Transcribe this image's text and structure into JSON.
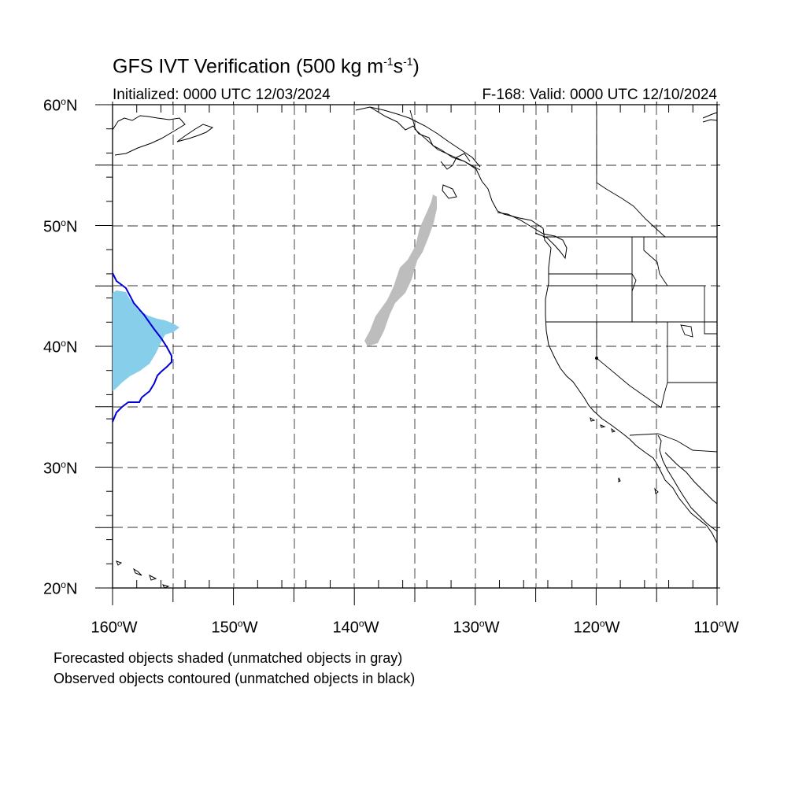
{
  "title": {
    "main": "GFS IVT Verification (500 kg m",
    "sup1": "-1",
    "mid": "s",
    "sup2": "-1",
    "end": ")"
  },
  "initialized": "Initialized: 0000 UTC 12/03/2024",
  "valid": "F-168: Valid: 0000 UTC 12/10/2024",
  "lat_ticks": [
    {
      "value": "60",
      "suffix": "N"
    },
    {
      "value": "50",
      "suffix": "N"
    },
    {
      "value": "40",
      "suffix": "N"
    },
    {
      "value": "30",
      "suffix": "N"
    },
    {
      "value": "20",
      "suffix": "N"
    }
  ],
  "lon_ticks": [
    {
      "value": "160",
      "suffix": "W"
    },
    {
      "value": "150",
      "suffix": "W"
    },
    {
      "value": "140",
      "suffix": "W"
    },
    {
      "value": "130",
      "suffix": "W"
    },
    {
      "value": "120",
      "suffix": "W"
    },
    {
      "value": "110",
      "suffix": "W"
    }
  ],
  "footnotes": [
    "Forecasted objects shaded (unmatched objects in gray)",
    "Observed objects contoured (unmatched objects in black)"
  ],
  "colors": {
    "forecast_matched": "#87ceeb",
    "forecast_unmatched": "#bdbdbd",
    "observed_matched": "#0000dd",
    "grid": "#000000"
  }
}
